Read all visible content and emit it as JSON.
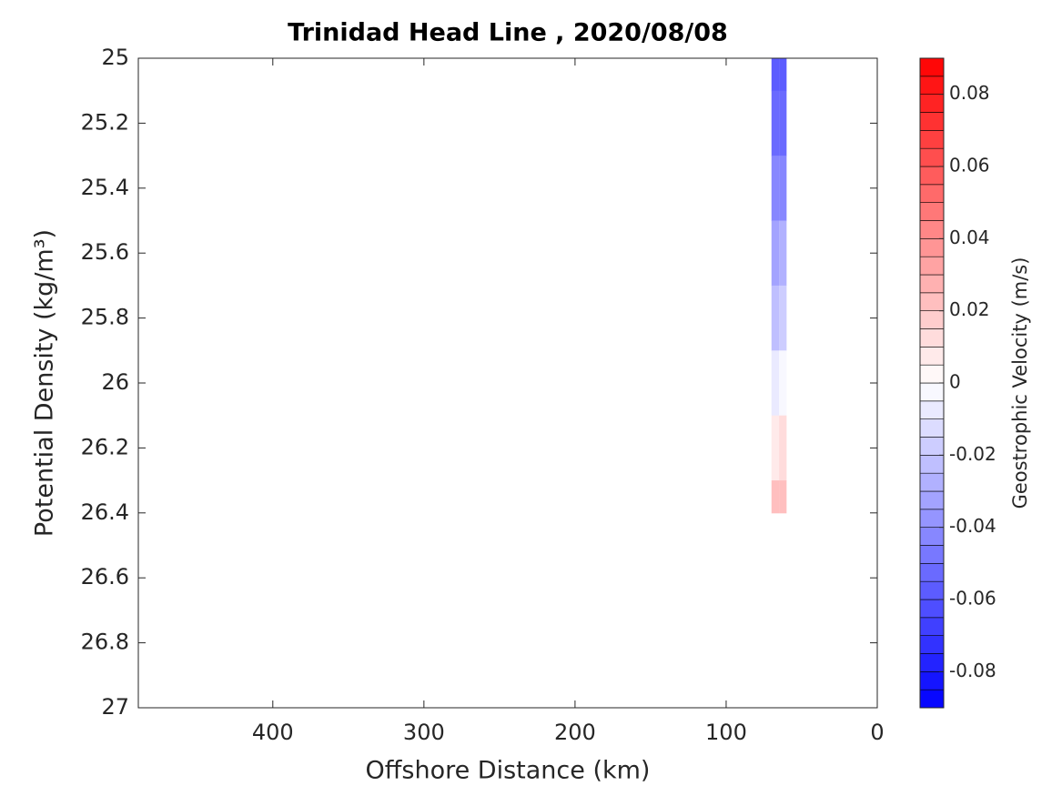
{
  "chart_data": {
    "type": "contourf",
    "title": "Trinidad Head Line , 2020/08/08",
    "x_label": "Offshore Distance (km)",
    "y_label": "Potential Density (kg/m³)",
    "colorbar_label": "Geostrophic Velocity (m/s)",
    "x": [
      60,
      70
    ],
    "y": [
      25,
      25.2,
      25.4,
      25.6,
      25.8,
      26,
      26.2,
      26.4
    ],
    "z": [
      [
        -0.055,
        -0.06
      ],
      [
        -0.05,
        -0.052
      ],
      [
        -0.04,
        -0.043
      ],
      [
        -0.03,
        -0.032
      ],
      [
        -0.018,
        -0.02
      ],
      [
        -0.004,
        -0.006
      ],
      [
        0.012,
        0.01
      ],
      [
        0.022,
        0.02
      ]
    ],
    "xlim": [
      0,
      489
    ],
    "xdir": "reverse",
    "xticks": [
      400,
      300,
      200,
      100,
      0
    ],
    "ylim": [
      25,
      27
    ],
    "ydir": "reverse",
    "yticks": [
      25,
      25.2,
      25.4,
      25.6,
      25.8,
      26,
      26.2,
      26.4,
      26.6,
      26.8,
      27
    ],
    "clim": [
      -0.09,
      0.09
    ],
    "n_levels": 36,
    "colormap": "blue-white-red",
    "cticks": [
      -0.08,
      -0.06,
      -0.04,
      -0.02,
      0,
      0.02,
      0.04,
      0.06,
      0.08
    ]
  }
}
